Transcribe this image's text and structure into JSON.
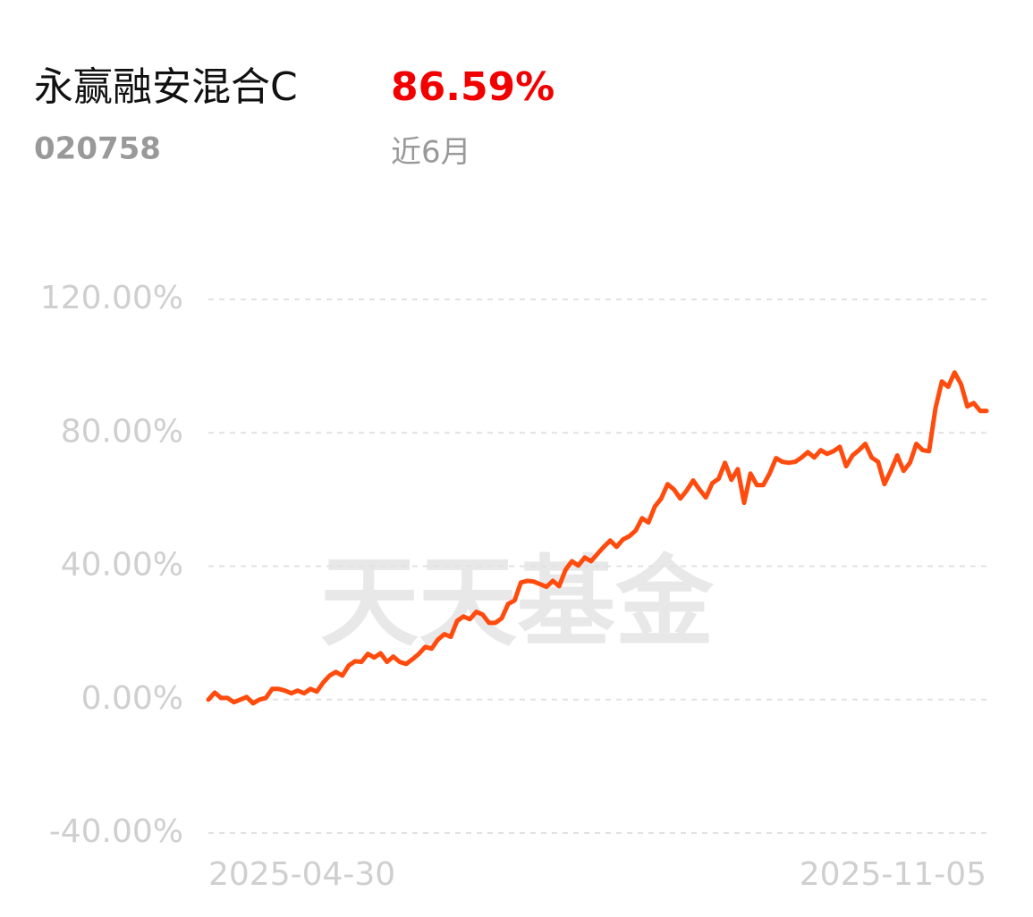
{
  "chart_data": {
    "type": "line",
    "title": "永赢融安混合C",
    "subtitle": "020758",
    "return": "86.59%",
    "period": "近6月",
    "watermark": "天天基金",
    "ylim": [
      -40,
      120
    ],
    "yticks": [
      {
        "value": 120,
        "label": "120.00%"
      },
      {
        "value": 80,
        "label": "80.00%"
      },
      {
        "value": 40,
        "label": "40.00%"
      },
      {
        "value": 0,
        "label": "0.00%"
      },
      {
        "value": -40,
        "label": "-40.00%"
      }
    ],
    "grid": true,
    "categories": [
      "2025-04-30",
      null,
      null,
      null,
      null,
      null,
      null,
      null,
      null,
      null,
      null,
      null,
      null,
      null,
      null,
      null,
      null,
      null,
      null,
      null,
      null,
      null,
      null,
      null,
      null,
      null,
      null,
      null,
      null,
      null,
      null,
      null,
      null,
      null,
      null,
      null,
      null,
      null,
      null,
      null,
      null,
      null,
      null,
      null,
      null,
      null,
      null,
      null,
      null,
      null,
      null,
      null,
      null,
      null,
      null,
      null,
      null,
      null,
      null,
      null,
      null,
      null,
      null,
      null,
      null,
      null,
      null,
      null,
      null,
      null,
      null,
      null,
      null,
      null,
      null,
      null,
      null,
      null,
      null,
      null,
      null,
      null,
      null,
      null,
      null,
      null,
      null,
      null,
      null,
      null,
      null,
      null,
      null,
      null,
      null,
      null,
      null,
      null,
      null,
      null,
      null,
      null,
      null,
      null,
      null,
      null,
      null,
      null,
      null,
      null,
      null,
      null,
      null,
      null,
      null,
      null,
      null,
      null,
      null,
      null,
      null,
      null,
      "2025-11-05"
    ],
    "color": "#ff4b0d",
    "values": [
      0,
      2.1,
      0.5,
      0.5,
      -0.8,
      0,
      0.8,
      -1.1,
      0,
      0.5,
      3.2,
      3.2,
      2.7,
      1.9,
      2.7,
      1.9,
      3.2,
      2.4,
      5.1,
      7.2,
      8.3,
      7.2,
      10.2,
      11.5,
      11.3,
      13.7,
      12.6,
      13.9,
      11.3,
      12.9,
      11.3,
      10.7,
      12.1,
      13.7,
      15.8,
      15.3,
      18.0,
      19.6,
      18.8,
      23.6,
      24.9,
      24.1,
      26.3,
      25.5,
      23.0,
      23.0,
      24.4,
      28.7,
      29.7,
      35.1,
      35.6,
      35.4,
      34.6,
      33.8,
      35.6,
      34.0,
      38.9,
      41.5,
      40.2,
      42.6,
      41.5,
      43.7,
      45.8,
      47.7,
      45.8,
      48.0,
      49.0,
      50.7,
      54.4,
      53.1,
      57.9,
      60.3,
      64.6,
      63.0,
      60.3,
      62.7,
      65.7,
      63.0,
      60.6,
      64.9,
      66.2,
      71.0,
      65.9,
      69.1,
      59.0,
      67.8,
      64.3,
      64.3,
      67.8,
      72.4,
      71.3,
      71.0,
      71.3,
      72.6,
      74.2,
      72.6,
      74.8,
      73.7,
      74.5,
      75.8,
      70.0,
      73.2,
      74.8,
      76.7,
      72.6,
      71.3,
      64.6,
      68.6,
      73.2,
      68.6,
      71.0,
      76.7,
      74.8,
      74.5,
      87.4,
      95.4,
      93.8,
      98.1,
      94.6,
      87.9,
      88.9,
      86.59,
      86.59
    ]
  }
}
